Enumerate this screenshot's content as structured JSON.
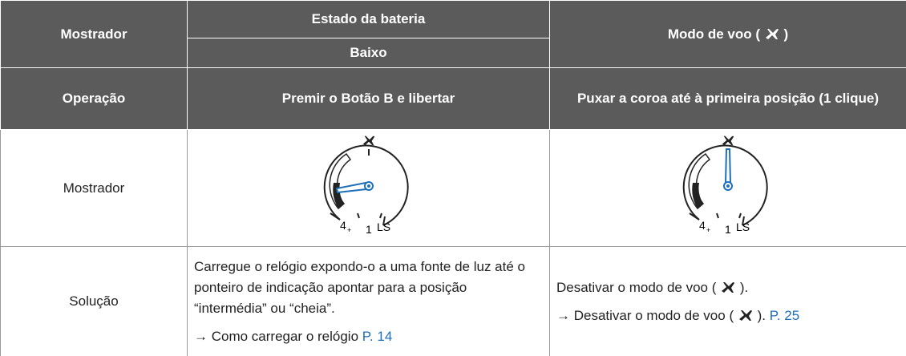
{
  "table": {
    "header": {
      "display": "Mostrador",
      "battery_title": "Estado da bateria",
      "battery_level": "Baixo",
      "flight_mode": {
        "before": "Modo de voo (",
        "after": ")"
      }
    },
    "operation": {
      "label": "Operação",
      "battery": "Premir o Botão B e libertar",
      "flight": "Puxar a coroa até à primeira posição (1 clique)"
    },
    "display_row": {
      "label": "Mostrador",
      "dials": [
        {
          "labels": [
            "4",
            "+",
            "1",
            "LS"
          ]
        },
        {
          "labels": [
            "4",
            "+",
            "1",
            "LS"
          ]
        }
      ]
    },
    "solution": {
      "label": "Solução",
      "battery": {
        "text": "Carregue o relógio expondo-o a uma fonte de luz até o ponteiro de indicação apontar para a posição “intermédia” ou “cheia”.",
        "ref": "→ Como carregar o relógio",
        "page": "P. 14"
      },
      "flight": {
        "text_before": "Desativar o modo de voo (",
        "text_after": ").",
        "ref_before": "→ Desativar o modo de voo (",
        "ref_after": ").",
        "page": "P. 25"
      }
    }
  }
}
